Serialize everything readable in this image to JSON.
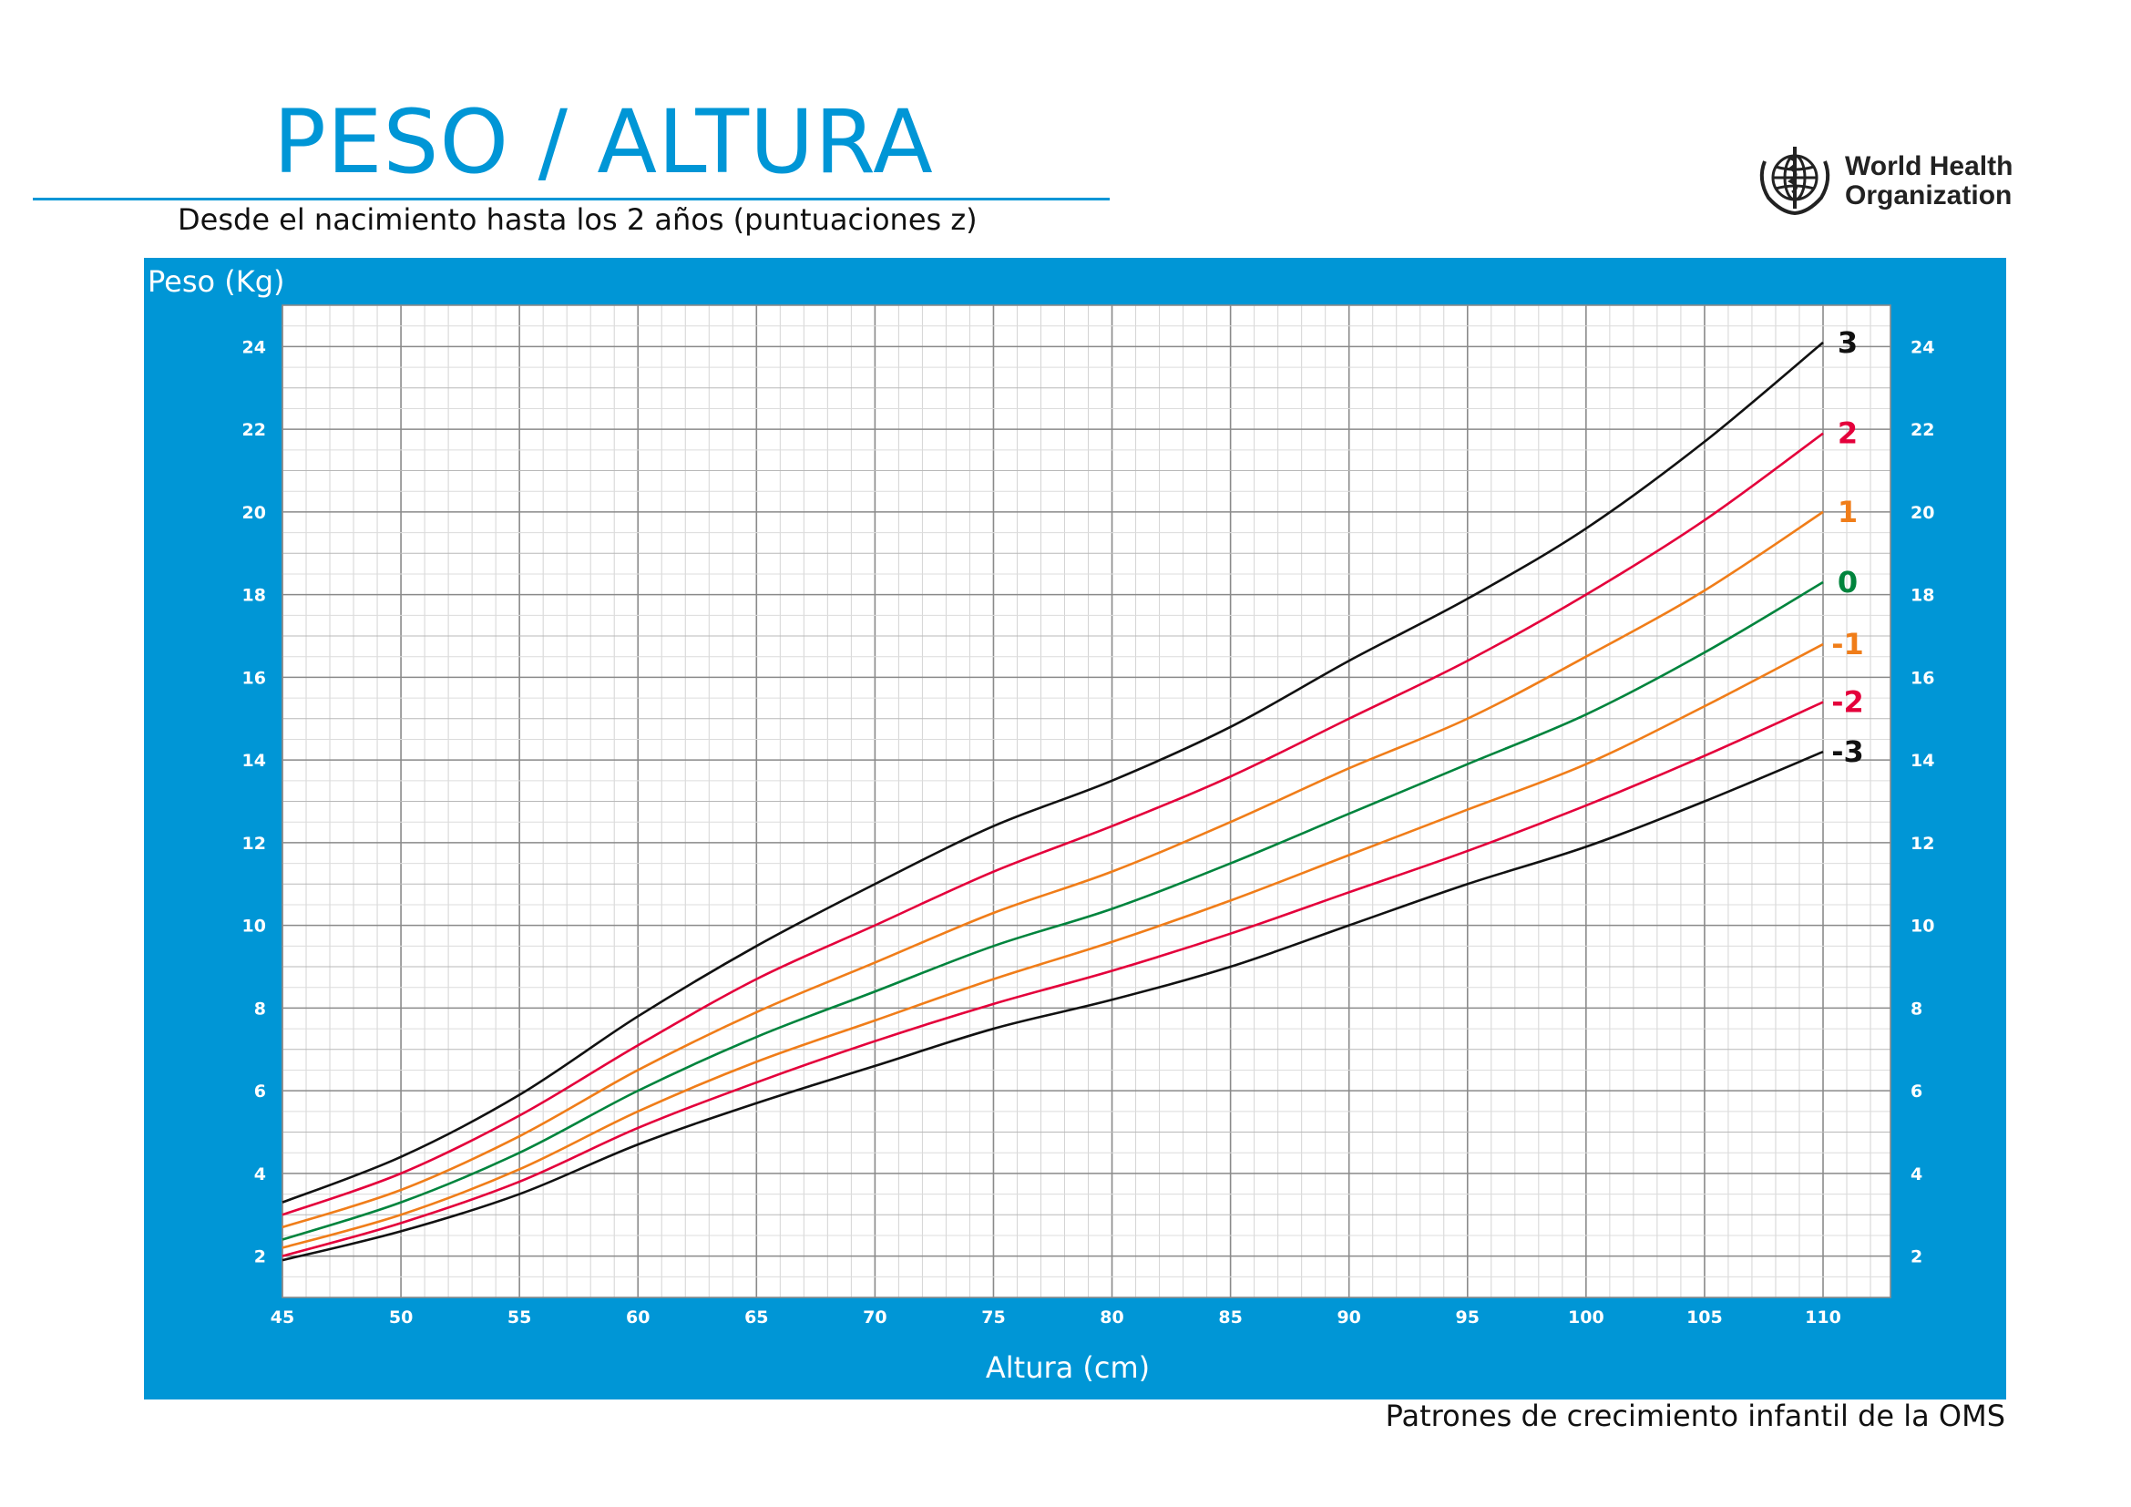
{
  "header": {
    "title": "PESO / ALTURA",
    "subtitle": "Desde el nacimiento hasta los 2 años (puntuaciones z)"
  },
  "logo": {
    "line1": "World Health",
    "line2": "Organization"
  },
  "footer": {
    "text": "Patrones de crecimiento infantil de la OMS"
  },
  "colors": {
    "accent": "#0096d6",
    "z3": "#111111",
    "z2": "#e4003b",
    "z1": "#f07d19",
    "z0": "#00843d"
  },
  "chart_data": {
    "type": "line",
    "xlabel": "Altura (cm)",
    "ylabel": "Peso (Kg)",
    "xlim": [
      45,
      110
    ],
    "ylim": [
      1,
      25
    ],
    "xticks": [
      45,
      50,
      55,
      60,
      65,
      70,
      75,
      80,
      85,
      90,
      95,
      100,
      105,
      110
    ],
    "yticks": [
      2,
      4,
      6,
      8,
      10,
      12,
      14,
      16,
      18,
      20,
      22,
      24
    ],
    "grid": true,
    "legend": "right-end labels",
    "x": [
      45,
      50,
      55,
      60,
      65,
      70,
      75,
      80,
      85,
      90,
      95,
      100,
      105,
      110
    ],
    "series": [
      {
        "name": "3",
        "color": "#111111",
        "values": [
          3.3,
          4.4,
          5.9,
          7.8,
          9.5,
          11.0,
          12.4,
          13.5,
          14.8,
          16.4,
          17.9,
          19.6,
          21.7,
          24.1
        ]
      },
      {
        "name": "2",
        "color": "#e4003b",
        "values": [
          3.0,
          4.0,
          5.4,
          7.1,
          8.7,
          10.0,
          11.3,
          12.4,
          13.6,
          15.0,
          16.4,
          18.0,
          19.8,
          21.9
        ]
      },
      {
        "name": "1",
        "color": "#f07d19",
        "values": [
          2.7,
          3.6,
          4.9,
          6.5,
          7.9,
          9.1,
          10.3,
          11.3,
          12.5,
          13.8,
          15.0,
          16.5,
          18.1,
          20.0
        ]
      },
      {
        "name": "0",
        "color": "#00843d",
        "values": [
          2.4,
          3.3,
          4.5,
          6.0,
          7.3,
          8.4,
          9.5,
          10.4,
          11.5,
          12.7,
          13.9,
          15.1,
          16.6,
          18.3
        ]
      },
      {
        "name": "-1",
        "color": "#f07d19",
        "values": [
          2.2,
          3.0,
          4.1,
          5.5,
          6.7,
          7.7,
          8.7,
          9.6,
          10.6,
          11.7,
          12.8,
          13.9,
          15.3,
          16.8
        ]
      },
      {
        "name": "-2",
        "color": "#e4003b",
        "values": [
          2.0,
          2.8,
          3.8,
          5.1,
          6.2,
          7.2,
          8.1,
          8.9,
          9.8,
          10.8,
          11.8,
          12.9,
          14.1,
          15.4
        ]
      },
      {
        "name": "-3",
        "color": "#111111",
        "values": [
          1.9,
          2.6,
          3.5,
          4.7,
          5.7,
          6.6,
          7.5,
          8.2,
          9.0,
          10.0,
          11.0,
          11.9,
          13.0,
          14.2
        ]
      }
    ]
  }
}
